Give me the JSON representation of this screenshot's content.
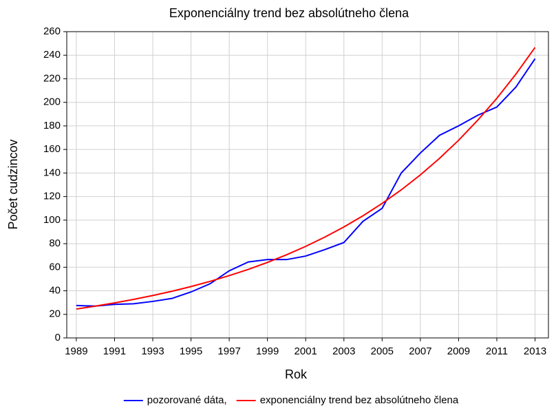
{
  "chart_data": {
    "type": "line",
    "title": "Exponenciálny trend bez absolútneho člena",
    "xlabel": "Rok",
    "ylabel": "Počet cudzincov",
    "x": [
      1989,
      1990,
      1991,
      1992,
      1993,
      1994,
      1995,
      1996,
      1997,
      1998,
      1999,
      2000,
      2001,
      2002,
      2003,
      2004,
      2005,
      2006,
      2007,
      2008,
      2009,
      2010,
      2011,
      2012,
      2013
    ],
    "series": [
      {
        "name": "pozorované dáta,",
        "color": "#0000ff",
        "values": [
          27.5,
          27,
          28.5,
          29,
          31,
          33.5,
          39,
          46,
          57,
          64.5,
          66.5,
          66.5,
          69.5,
          75,
          81,
          99,
          110,
          140,
          157,
          172,
          180,
          189,
          196,
          213,
          237
        ]
      },
      {
        "name": "exponenciálny trend bez absolútneho člena",
        "color": "#ff0000",
        "values": [
          24.5,
          27.0,
          29.7,
          32.7,
          36.0,
          39.6,
          43.6,
          48.0,
          52.9,
          58.2,
          64.1,
          70.6,
          77.7,
          85.6,
          94.2,
          103.7,
          114.2,
          125.7,
          138.4,
          152.4,
          167.8,
          184.8,
          203.4,
          224.0,
          246.6
        ]
      }
    ],
    "xlim": [
      1988.5,
      2013.7
    ],
    "xticks": [
      1989,
      1991,
      1993,
      1995,
      1997,
      1999,
      2001,
      2003,
      2005,
      2007,
      2009,
      2011,
      2013
    ],
    "ylim": [
      0,
      260
    ],
    "yticks": [
      0,
      20,
      40,
      60,
      80,
      100,
      120,
      140,
      160,
      180,
      200,
      220,
      240,
      260
    ],
    "grid": true,
    "legend": "bottom"
  }
}
